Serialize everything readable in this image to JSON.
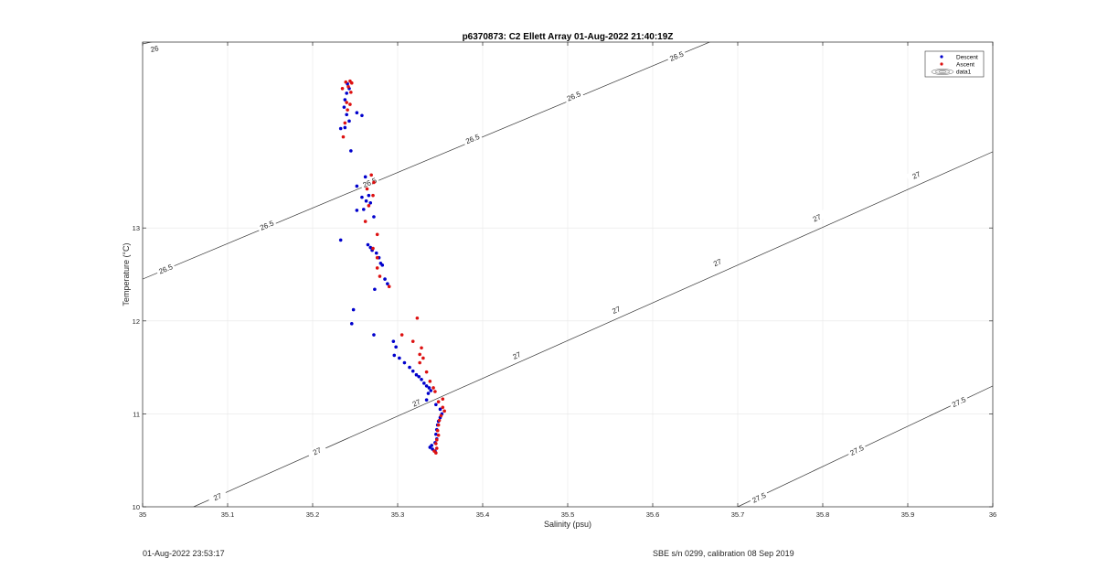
{
  "chart_data": {
    "type": "scatter",
    "title": "p6370873: C2 Ellett Array 01-Aug-2022 21:40:19Z",
    "xlabel": "Salinity (psu)",
    "ylabel": "Temperature (°C)",
    "xlim": [
      35,
      36
    ],
    "ylim": [
      10,
      15
    ],
    "x_ticks": [
      "35",
      "35.1",
      "35.2",
      "35.3",
      "35.4",
      "35.5",
      "35.6",
      "35.7",
      "35.8",
      "35.9",
      "36"
    ],
    "y_ticks": [
      "10",
      "11",
      "12",
      "13"
    ],
    "grid": true,
    "legend": {
      "position": "top-right",
      "entries": [
        "Descent",
        "Ascent",
        "data1"
      ]
    },
    "colors": {
      "descent": "#0000cc",
      "ascent": "#dd1111",
      "contour": "#333333",
      "grid": "#e6e6e6"
    },
    "contours": [
      {
        "level": "26",
        "labels": [
          "26"
        ]
      },
      {
        "level": "26.5",
        "labels": [
          "26.5",
          "26.5",
          "26.5",
          "26.5",
          "26.5",
          "26.5"
        ]
      },
      {
        "level": "27",
        "labels": [
          "27",
          "27",
          "27",
          "27",
          "27",
          "27",
          "27",
          "27",
          "27"
        ]
      },
      {
        "level": "27.5",
        "labels": [
          "27.5",
          "27.5",
          "27.5",
          "27.5"
        ]
      }
    ],
    "series": [
      {
        "name": "Descent",
        "points": [
          [
            35.241,
            14.55
          ],
          [
            35.243,
            14.5
          ],
          [
            35.24,
            14.45
          ],
          [
            35.238,
            14.38
          ],
          [
            35.237,
            14.3
          ],
          [
            35.24,
            14.22
          ],
          [
            35.243,
            14.15
          ],
          [
            35.252,
            14.24
          ],
          [
            35.258,
            14.21
          ],
          [
            35.238,
            14.08
          ],
          [
            35.233,
            14.07
          ],
          [
            35.245,
            13.83
          ],
          [
            35.252,
            13.45
          ],
          [
            35.262,
            13.55
          ],
          [
            35.258,
            13.33
          ],
          [
            35.263,
            13.29
          ],
          [
            35.266,
            13.35
          ],
          [
            35.268,
            13.27
          ],
          [
            35.26,
            13.2
          ],
          [
            35.252,
            13.19
          ],
          [
            35.272,
            13.12
          ],
          [
            35.265,
            12.82
          ],
          [
            35.268,
            12.79
          ],
          [
            35.27,
            12.76
          ],
          [
            35.275,
            12.73
          ],
          [
            35.278,
            12.68
          ],
          [
            35.28,
            12.62
          ],
          [
            35.282,
            12.6
          ],
          [
            35.285,
            12.45
          ],
          [
            35.288,
            12.4
          ],
          [
            35.273,
            12.34
          ],
          [
            35.233,
            12.87
          ],
          [
            35.248,
            12.12
          ],
          [
            35.246,
            11.97
          ],
          [
            35.272,
            11.85
          ],
          [
            35.295,
            11.78
          ],
          [
            35.298,
            11.72
          ],
          [
            35.296,
            11.63
          ],
          [
            35.302,
            11.6
          ],
          [
            35.308,
            11.55
          ],
          [
            35.314,
            11.5
          ],
          [
            35.318,
            11.46
          ],
          [
            35.322,
            11.42
          ],
          [
            35.325,
            11.4
          ],
          [
            35.328,
            11.37
          ],
          [
            35.331,
            11.33
          ],
          [
            35.334,
            11.3
          ],
          [
            35.337,
            11.28
          ],
          [
            35.339,
            11.25
          ],
          [
            35.336,
            11.22
          ],
          [
            35.334,
            11.15
          ],
          [
            35.345,
            11.1
          ],
          [
            35.35,
            11.05
          ],
          [
            35.352,
            11.0
          ],
          [
            35.35,
            10.96
          ],
          [
            35.348,
            10.92
          ],
          [
            35.347,
            10.88
          ],
          [
            35.346,
            10.83
          ],
          [
            35.345,
            10.78
          ],
          [
            35.346,
            10.73
          ],
          [
            35.344,
            10.69
          ],
          [
            35.34,
            10.66
          ],
          [
            35.338,
            10.64
          ],
          [
            35.341,
            10.62
          ],
          [
            35.344,
            10.6
          ]
        ]
      },
      {
        "name": "Ascent",
        "points": [
          [
            35.239,
            14.57
          ],
          [
            35.244,
            14.58
          ],
          [
            35.246,
            14.56
          ],
          [
            35.242,
            14.52
          ],
          [
            35.235,
            14.5
          ],
          [
            35.245,
            14.46
          ],
          [
            35.24,
            14.35
          ],
          [
            35.244,
            14.33
          ],
          [
            35.241,
            14.27
          ],
          [
            35.238,
            14.13
          ],
          [
            35.236,
            13.98
          ],
          [
            35.269,
            13.57
          ],
          [
            35.272,
            13.49
          ],
          [
            35.264,
            13.42
          ],
          [
            35.271,
            13.35
          ],
          [
            35.266,
            13.24
          ],
          [
            35.262,
            13.07
          ],
          [
            35.276,
            12.93
          ],
          [
            35.271,
            12.78
          ],
          [
            35.276,
            12.68
          ],
          [
            35.276,
            12.57
          ],
          [
            35.279,
            12.48
          ],
          [
            35.29,
            12.37
          ],
          [
            35.323,
            12.03
          ],
          [
            35.305,
            11.85
          ],
          [
            35.318,
            11.78
          ],
          [
            35.328,
            11.71
          ],
          [
            35.326,
            11.64
          ],
          [
            35.33,
            11.6
          ],
          [
            35.326,
            11.55
          ],
          [
            35.334,
            11.45
          ],
          [
            35.338,
            11.35
          ],
          [
            35.342,
            11.28
          ],
          [
            35.344,
            11.24
          ],
          [
            35.348,
            11.13
          ],
          [
            35.353,
            11.07
          ],
          [
            35.355,
            11.03
          ],
          [
            35.351,
            10.98
          ],
          [
            35.349,
            10.93
          ],
          [
            35.348,
            10.88
          ],
          [
            35.347,
            10.82
          ],
          [
            35.348,
            10.77
          ],
          [
            35.346,
            10.72
          ],
          [
            35.345,
            10.68
          ],
          [
            35.346,
            10.63
          ],
          [
            35.343,
            10.6
          ],
          [
            35.345,
            10.58
          ],
          [
            35.353,
            11.16
          ]
        ]
      }
    ]
  },
  "footer": {
    "left": "01-Aug-2022 23:53:17",
    "right": "SBE s/n 0299, calibration 08 Sep 2019"
  }
}
